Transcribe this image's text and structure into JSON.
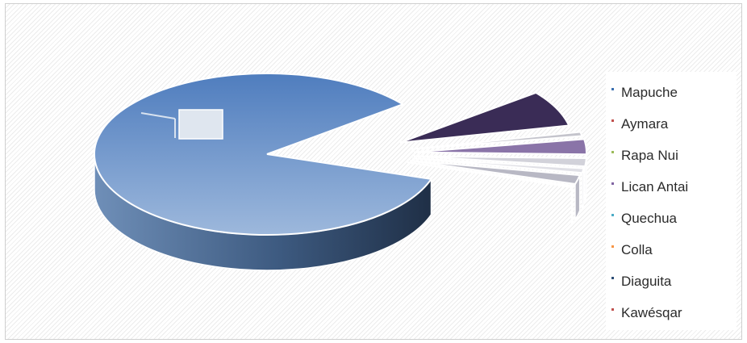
{
  "chart_data": {
    "type": "pie",
    "style": "3d-exploded",
    "title": "",
    "legend_position": "right",
    "slices": [
      {
        "label": "Mapuche",
        "value": 84.4,
        "color": "#5b86c4",
        "marker_color": "#3a6fb0"
      },
      {
        "label": "Aymara",
        "value": 7.2,
        "color": "#3a2c56",
        "marker_color": "#c0504d"
      },
      {
        "label": "Rapa Nui",
        "value": 0.8,
        "color": "#c4c4cc",
        "marker_color": "#9bbb59"
      },
      {
        "label": "Lican Antai",
        "value": 3.0,
        "color": "#8a74a8",
        "marker_color": "#8064a2"
      },
      {
        "label": "Quechua",
        "value": 1.6,
        "color": "#d2d2da",
        "marker_color": "#4bacc6"
      },
      {
        "label": "Colla",
        "value": 0.9,
        "color": "#e0e0e6",
        "marker_color": "#f79646"
      },
      {
        "label": "Diaguita",
        "value": 1.8,
        "color": "#b8b8c4",
        "marker_color": "#2c4d75"
      },
      {
        "label": "Kawésqar",
        "value": 0.3,
        "color": "#e8e8ee",
        "marker_color": "#c0504d"
      }
    ]
  }
}
